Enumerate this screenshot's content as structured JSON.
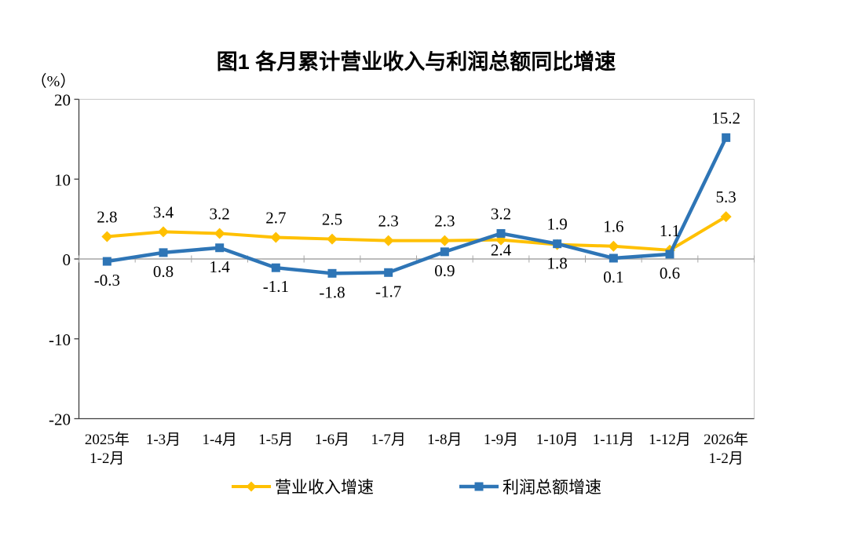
{
  "chart_data": {
    "type": "line",
    "title": "图1  各月累计营业收入与利润总额同比增速",
    "unit_label": "（%）",
    "categories": [
      "2025年\n1-2月",
      "1-3月",
      "1-4月",
      "1-5月",
      "1-6月",
      "1-7月",
      "1-8月",
      "1-9月",
      "1-10月",
      "1-11月",
      "1-12月",
      "2026年\n1-2月"
    ],
    "ylim": [
      -20,
      20
    ],
    "yticks": [
      20,
      10,
      0,
      -10,
      -20
    ],
    "grid": false,
    "legend_position": "bottom",
    "series": [
      {
        "name": "营业收入增速",
        "color": "#FFC000",
        "marker": "diamond",
        "line_width": 4,
        "values": [
          2.8,
          3.4,
          3.2,
          2.7,
          2.5,
          2.3,
          2.3,
          2.4,
          1.8,
          1.6,
          1.1,
          5.3
        ],
        "label_pos": [
          "above",
          "above",
          "above",
          "above",
          "above",
          "above",
          "above",
          "inside",
          "below",
          "above",
          "above",
          "above"
        ]
      },
      {
        "name": "利润总额增速",
        "color": "#2E75B6",
        "marker": "square",
        "line_width": 4.5,
        "values": [
          -0.3,
          0.8,
          1.4,
          -1.1,
          -1.8,
          -1.7,
          0.9,
          3.2,
          1.9,
          0.1,
          0.6,
          15.2
        ],
        "label_pos": [
          "below",
          "below",
          "below",
          "below",
          "below",
          "below",
          "below",
          "above",
          "above",
          "below",
          "below",
          "above"
        ]
      }
    ],
    "colors": {
      "axis_dark": "#3f3f3f",
      "axis_light": "#c9c9c9",
      "zero_line": "#a6a6a6",
      "label_text": "#000000"
    }
  }
}
